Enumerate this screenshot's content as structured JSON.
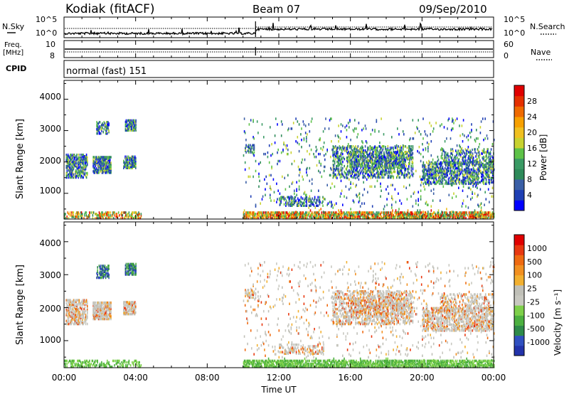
{
  "header": {
    "station": "Kodiak (fitACF)",
    "beam": "Beam 07",
    "date": "09/Sep/2010"
  },
  "noise_panel": {
    "left_label": "N.Sky",
    "left_ticks": [
      "10^5",
      "10^0"
    ],
    "right_ticks": [
      "10^5",
      "10^0"
    ],
    "right_label": "N.Search"
  },
  "freq_panel": {
    "left_label_1": "Freq.",
    "left_label_2": "[MHz]",
    "left_ticks": [
      "10",
      "8"
    ],
    "right_ticks": [
      "60",
      "0"
    ],
    "right_label": "Nave"
  },
  "cpid_panel": {
    "label": "CPID",
    "mode_text": "normal (fast) 151"
  },
  "chart_data": [
    {
      "type": "heatmap",
      "ylabel": "Slant Range [km]",
      "yticks": [
        "1000",
        "2000",
        "3000",
        "4000"
      ],
      "ylim": [
        180,
        4600
      ],
      "xlim_hours": [
        0,
        24
      ],
      "colorbar_label": "Power [dB]",
      "colorbar_ticks": [
        "28",
        "24",
        "20",
        "16",
        "12",
        "8",
        "4"
      ],
      "colorbar_colors": [
        "#0000ff",
        "#1f3fb4",
        "#3a5fa6",
        "#2e8a5a",
        "#3a9a64",
        "#5ec248",
        "#c8d230",
        "#f0c020",
        "#f7a000",
        "#ef6a00",
        "#e53000",
        "#e00000"
      ]
    },
    {
      "type": "heatmap",
      "ylabel": "Slant Range [km]",
      "yticks": [
        "1000",
        "2000",
        "3000",
        "4000"
      ],
      "ylim": [
        180,
        4600
      ],
      "xlim_hours": [
        0,
        24
      ],
      "colorbar_label": "Velocity [m s⁻¹]",
      "colorbar_ticks": [
        "1000",
        "500",
        "100",
        "25",
        "-25",
        "-100",
        "-500",
        "-1000"
      ],
      "colorbar_colors": [
        "#2233aa",
        "#3050c0",
        "#2e8a4a",
        "#4cb040",
        "#7ed04a",
        "#c8c8c0",
        "#c0c0b8",
        "#f2b030",
        "#f29020",
        "#ef6a10",
        "#e83810",
        "#e00000"
      ]
    }
  ],
  "time_axis": {
    "ticks": [
      "00:00",
      "04:00",
      "08:00",
      "12:00",
      "16:00",
      "20:00",
      "00:00"
    ],
    "label": "Time UT"
  },
  "colors": {
    "axis": "#000000",
    "background": "#ffffff"
  }
}
